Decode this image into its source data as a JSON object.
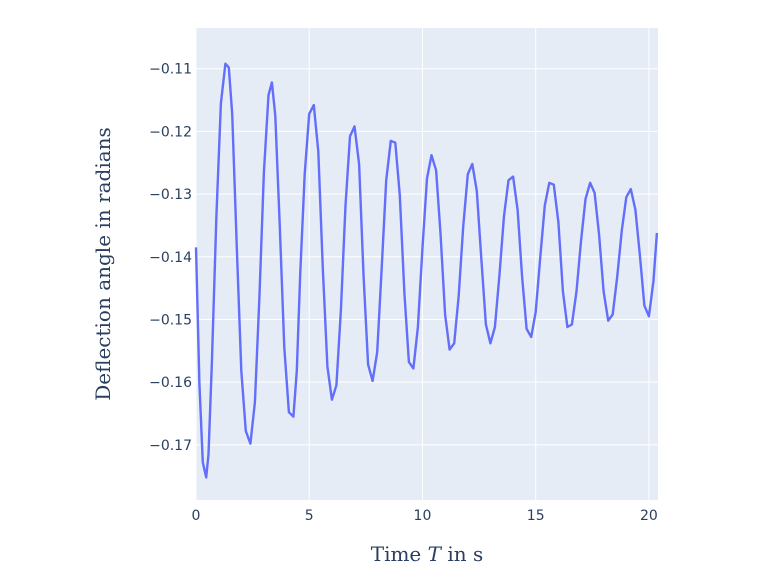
{
  "chart_data": {
    "type": "line",
    "xlabel_parts": [
      "Time ",
      "T",
      " in s"
    ],
    "ylabel": "Deflection angle  in radians",
    "xlim": [
      0,
      20.4
    ],
    "ylim": [
      -0.1788,
      -0.1035
    ],
    "x_ticks": [
      0,
      5,
      10,
      15,
      20
    ],
    "y_ticks": [
      -0.11,
      -0.12,
      -0.13,
      -0.14,
      -0.15,
      -0.16,
      -0.17
    ],
    "y_tick_labels": [
      "−0.11",
      "−0.12",
      "−0.13",
      "−0.14",
      "−0.15",
      "−0.16",
      "−0.17"
    ],
    "grid": true,
    "colors": {
      "line": "#636efa",
      "plot_bg": "#e5ecf6",
      "grid": "#ffffff",
      "text": "#2a3f5f"
    },
    "series": [
      {
        "x": [
          0.0,
          0.15,
          0.3,
          0.45,
          0.55,
          0.7,
          0.9,
          1.1,
          1.3,
          1.45,
          1.6,
          1.8,
          2.0,
          2.2,
          2.4,
          2.6,
          2.8,
          3.0,
          3.2,
          3.35,
          3.5,
          3.7,
          3.9,
          4.1,
          4.3,
          4.45,
          4.6,
          4.8,
          5.0,
          5.2,
          5.4,
          5.6,
          5.8,
          6.0,
          6.2,
          6.4,
          6.6,
          6.8,
          7.0,
          7.2,
          7.4,
          7.6,
          7.8,
          8.0,
          8.2,
          8.4,
          8.6,
          8.8,
          9.0,
          9.2,
          9.4,
          9.6,
          9.8,
          10.0,
          10.2,
          10.4,
          10.6,
          10.8,
          11.0,
          11.2,
          11.4,
          11.6,
          11.8,
          12.0,
          12.2,
          12.4,
          12.6,
          12.8,
          13.0,
          13.2,
          13.4,
          13.6,
          13.8,
          14.0,
          14.2,
          14.4,
          14.6,
          14.8,
          15.0,
          15.2,
          15.4,
          15.6,
          15.8,
          16.0,
          16.2,
          16.4,
          16.6,
          16.8,
          17.0,
          17.2,
          17.4,
          17.6,
          17.8,
          18.0,
          18.2,
          18.4,
          18.6,
          18.8,
          19.0,
          19.2,
          19.4,
          19.6,
          19.8,
          20.0,
          20.2,
          20.35
        ],
        "y": [
          -0.1385,
          -0.1602,
          -0.1728,
          -0.1752,
          -0.1715,
          -0.1568,
          -0.1335,
          -0.1155,
          -0.1092,
          -0.1098,
          -0.1172,
          -0.1385,
          -0.1582,
          -0.1678,
          -0.1698,
          -0.1632,
          -0.1465,
          -0.1265,
          -0.1142,
          -0.1122,
          -0.1175,
          -0.1352,
          -0.1545,
          -0.1648,
          -0.1655,
          -0.1582,
          -0.1428,
          -0.1268,
          -0.1172,
          -0.1158,
          -0.1232,
          -0.1418,
          -0.1575,
          -0.1628,
          -0.1605,
          -0.1485,
          -0.1318,
          -0.1208,
          -0.1192,
          -0.1252,
          -0.1432,
          -0.1572,
          -0.1598,
          -0.1552,
          -0.1418,
          -0.1278,
          -0.1215,
          -0.1218,
          -0.1302,
          -0.1458,
          -0.1568,
          -0.1578,
          -0.1512,
          -0.1385,
          -0.1275,
          -0.1238,
          -0.1262,
          -0.1365,
          -0.1492,
          -0.1548,
          -0.1538,
          -0.1462,
          -0.1352,
          -0.1268,
          -0.1252,
          -0.1295,
          -0.1405,
          -0.1508,
          -0.1538,
          -0.1512,
          -0.1428,
          -0.1335,
          -0.1278,
          -0.1272,
          -0.1325,
          -0.1432,
          -0.1515,
          -0.1528,
          -0.1488,
          -0.1402,
          -0.1318,
          -0.1282,
          -0.1285,
          -0.1345,
          -0.1455,
          -0.1512,
          -0.1508,
          -0.1455,
          -0.1375,
          -0.1308,
          -0.1282,
          -0.1298,
          -0.1365,
          -0.1455,
          -0.1502,
          -0.1492,
          -0.1432,
          -0.1358,
          -0.1305,
          -0.1292,
          -0.1325,
          -0.1398,
          -0.1478,
          -0.1495,
          -0.1438,
          -0.1362
        ]
      }
    ]
  }
}
